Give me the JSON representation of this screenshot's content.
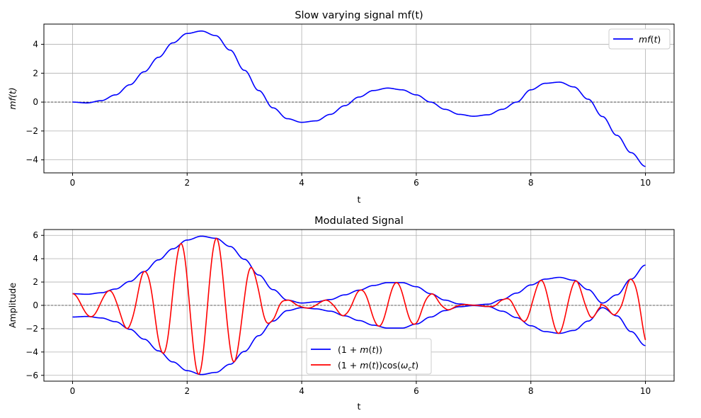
{
  "chart_data": [
    {
      "type": "line",
      "title": "Slow varying signal mf(t)",
      "xlabel": "t",
      "ylabel": "mf(t)",
      "xlim": [
        -0.5,
        10.5
      ],
      "ylim": [
        -4.9,
        5.4
      ],
      "x_ticks": [
        "0",
        "2",
        "4",
        "6",
        "8",
        "10"
      ],
      "y_ticks": [
        "−4",
        "−2",
        "0",
        "2",
        "4"
      ],
      "grid": true,
      "zero_line": true,
      "legend": "top-right",
      "series": [
        {
          "name": "mf(t)",
          "color": "#0000ff",
          "x": [
            0,
            0.25,
            0.5,
            0.75,
            1.0,
            1.25,
            1.5,
            1.75,
            2.0,
            2.25,
            2.5,
            2.75,
            3.0,
            3.25,
            3.5,
            3.75,
            4.0,
            4.25,
            4.5,
            4.75,
            5.0,
            5.25,
            5.5,
            5.75,
            6.0,
            6.25,
            6.5,
            6.75,
            7.0,
            7.25,
            7.5,
            7.75,
            8.0,
            8.25,
            8.5,
            8.75,
            9.0,
            9.25,
            9.5,
            9.75,
            10.0
          ],
          "values": [
            0.0,
            -0.06,
            0.1,
            0.5,
            1.2,
            2.1,
            3.1,
            4.1,
            4.75,
            4.92,
            4.6,
            3.6,
            2.2,
            0.8,
            -0.4,
            -1.15,
            -1.4,
            -1.3,
            -0.85,
            -0.25,
            0.35,
            0.8,
            0.97,
            0.85,
            0.5,
            0.0,
            -0.5,
            -0.85,
            -0.98,
            -0.88,
            -0.5,
            0.0,
            0.85,
            1.3,
            1.38,
            1.05,
            0.2,
            -1.0,
            -2.3,
            -3.5,
            -4.45
          ]
        }
      ]
    },
    {
      "type": "line",
      "title": "Modulated Signal",
      "xlabel": "t",
      "ylabel": "Amplitude",
      "xlim": [
        -0.5,
        10.5
      ],
      "ylim": [
        -6.5,
        6.5
      ],
      "x_ticks": [
        "0",
        "2",
        "4",
        "6",
        "8",
        "10"
      ],
      "y_ticks": [
        "−6",
        "−4",
        "−2",
        "0",
        "2",
        "4",
        "6"
      ],
      "grid": true,
      "zero_line": true,
      "legend": "lower-center",
      "carrier_frequency_rad_per_t": 10,
      "series": [
        {
          "name": "(1 + m(t))",
          "color": "#0000ff",
          "mirrored": true,
          "x": [
            0,
            0.25,
            0.5,
            0.75,
            1.0,
            1.25,
            1.5,
            1.75,
            2.0,
            2.25,
            2.5,
            2.75,
            3.0,
            3.25,
            3.5,
            3.75,
            4.0,
            4.25,
            4.5,
            4.75,
            5.0,
            5.25,
            5.5,
            5.75,
            6.0,
            6.25,
            6.5,
            6.75,
            7.0,
            7.25,
            7.5,
            7.75,
            8.0,
            8.25,
            8.5,
            8.75,
            9.0,
            9.25,
            9.5,
            9.75,
            10.0
          ],
          "values": [
            1.0,
            0.95,
            1.08,
            1.4,
            2.05,
            2.9,
            3.9,
            4.85,
            5.6,
            5.93,
            5.75,
            5.05,
            3.95,
            2.6,
            1.35,
            0.45,
            0.2,
            0.3,
            0.5,
            0.9,
            1.3,
            1.7,
            1.95,
            1.95,
            1.6,
            1.0,
            0.45,
            0.12,
            0.02,
            0.1,
            0.5,
            1.05,
            1.75,
            2.25,
            2.4,
            2.15,
            1.35,
            0.2,
            0.9,
            2.25,
            3.45
          ]
        },
        {
          "name": "(1 + m(t))cos(ω_c t)",
          "color": "#ff0000",
          "modulates": "(1 + m(t))"
        }
      ]
    }
  ]
}
